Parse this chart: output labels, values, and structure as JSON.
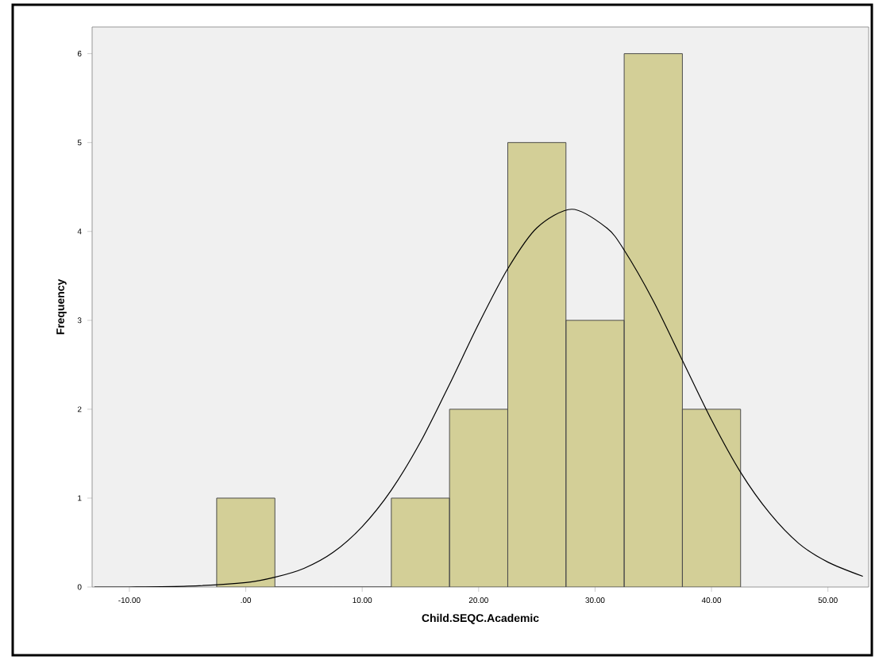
{
  "chart_data": {
    "type": "histogram",
    "xlabel": "Child.SEQC.Academic",
    "ylabel": "Frequency",
    "bins": [
      -2.5,
      2.5,
      7.5,
      12.5,
      17.5,
      22.5,
      27.5,
      32.5,
      37.5,
      42.5
    ],
    "values": [
      1,
      0,
      0,
      1,
      2,
      5,
      3,
      6,
      2
    ],
    "color": "#d3cf97",
    "series": [
      {
        "type": "line",
        "color": "#000000",
        "x": [
          -13,
          -10,
          -5,
          0,
          2.5,
          5,
          7.5,
          10,
          12.5,
          15,
          17.5,
          20,
          22.5,
          25,
          28,
          31,
          32.5,
          35,
          37.5,
          40,
          42.5,
          45,
          47.5,
          50,
          53
        ],
        "values": [
          0.0,
          0.0,
          0.01,
          0.05,
          0.11,
          0.21,
          0.39,
          0.68,
          1.09,
          1.63,
          2.28,
          2.96,
          3.58,
          4.04,
          4.25,
          4.04,
          3.79,
          3.22,
          2.55,
          1.88,
          1.29,
          0.83,
          0.49,
          0.28,
          0.12
        ]
      }
    ],
    "xlim": [
      -13.2,
      53.5
    ],
    "ylim": [
      0,
      6.3
    ],
    "xticks": [
      {
        "value": -10,
        "label": "-10.00"
      },
      {
        "value": 0,
        "label": ".00"
      },
      {
        "value": 10,
        "label": "10.00"
      },
      {
        "value": 20,
        "label": "20.00"
      },
      {
        "value": 30,
        "label": "30.00"
      },
      {
        "value": 40,
        "label": "40.00"
      },
      {
        "value": 50,
        "label": "50.00"
      }
    ],
    "yticks": [
      0,
      1,
      2,
      3,
      4,
      5,
      6
    ]
  }
}
